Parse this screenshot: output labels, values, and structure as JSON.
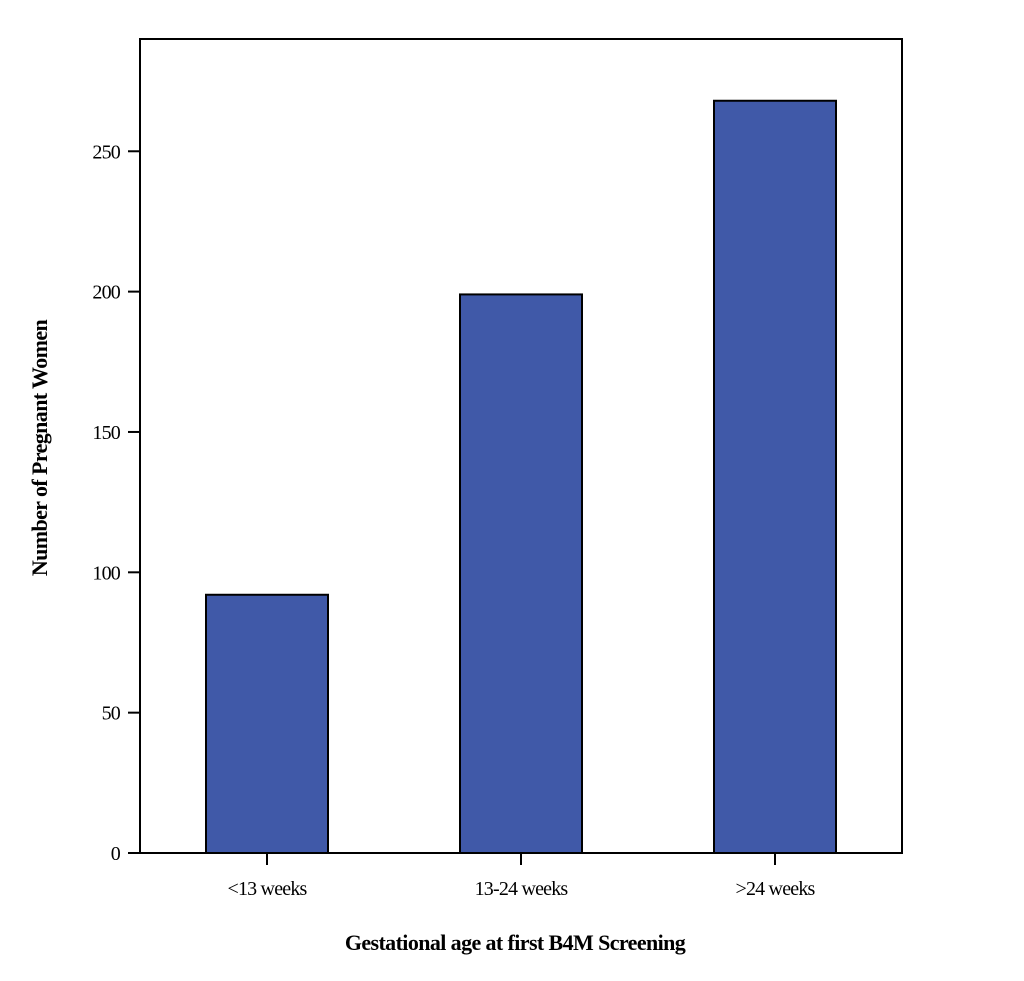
{
  "chart_data": {
    "type": "bar",
    "categories": [
      "<13 weeks",
      "13-24 weeks",
      ">24 weeks"
    ],
    "values": [
      92,
      199,
      268
    ],
    "xlabel": "Gestational age at first B4M Screening",
    "ylabel": "Number of Pregnant Women",
    "ylim": [
      0,
      290
    ],
    "yticks": [
      0,
      50,
      100,
      150,
      200,
      250
    ],
    "grid": false,
    "legend": "none",
    "bar_color": "#4059A8",
    "bar_edge_color": "#000000"
  }
}
